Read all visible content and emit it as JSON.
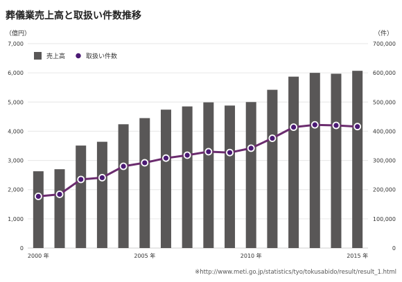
{
  "chart_data": {
    "type": "bar",
    "title": "葬儀業売上高と取扱い件数推移",
    "left_unit": "（億円）",
    "right_unit": "（件）",
    "years": [
      2000,
      2001,
      2002,
      2003,
      2004,
      2005,
      2006,
      2007,
      2008,
      2009,
      2010,
      2011,
      2012,
      2013,
      2014,
      2015
    ],
    "x_tick_labels": [
      {
        "year": 2000,
        "label": "2000 年"
      },
      {
        "year": 2005,
        "label": "2005 年"
      },
      {
        "year": 2010,
        "label": "2010 年"
      },
      {
        "year": 2015,
        "label": "2015 年"
      }
    ],
    "left_axis": {
      "min": 0,
      "max": 7000,
      "ticks": [
        "0",
        "1,000",
        "2,000",
        "3,000",
        "4,000",
        "5,000",
        "6,000",
        "7,000"
      ]
    },
    "right_axis": {
      "min": 0,
      "max": 700000,
      "ticks": [
        "0",
        "100,000",
        "200,000",
        "300,000",
        "400,000",
        "500,000",
        "600,000",
        "700,000"
      ]
    },
    "grid": true,
    "legend_position": "top-left",
    "series": [
      {
        "name": "売上高",
        "type": "bar",
        "axis": "left",
        "color": "#595757",
        "values": [
          2630,
          2700,
          3510,
          3640,
          4240,
          4450,
          4740,
          4850,
          4990,
          4880,
          5000,
          5420,
          5870,
          6000,
          5970,
          6070
        ]
      },
      {
        "name": "取扱い件数",
        "type": "line",
        "axis": "right",
        "color": "#6b2c6e",
        "marker_color": "#4b1a74",
        "values": [
          177000,
          184000,
          235000,
          241000,
          280000,
          292000,
          308000,
          318000,
          330000,
          327000,
          342000,
          376000,
          414000,
          422000,
          420000,
          416000
        ]
      }
    ],
    "source_note": "※http://www.meti.go.jp/statistics/tyo/tokusabido/result/result_1.html"
  }
}
